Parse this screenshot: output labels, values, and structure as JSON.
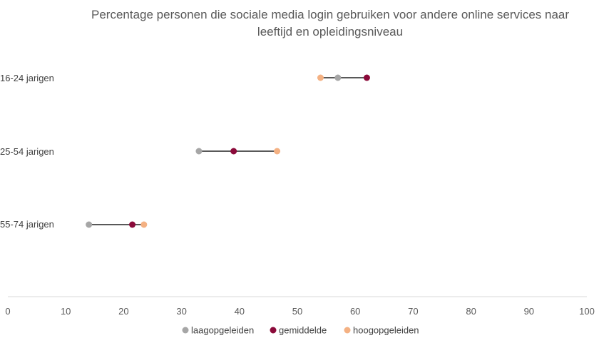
{
  "chart_data": {
    "type": "scatter",
    "title_lines": [
      "Percentage personen die sociale media login gebruiken voor andere online services naar",
      "leeftijd en opleidingsniveau"
    ],
    "categories": [
      "16-24 jarigen",
      "25-54 jarigen",
      "55-74 jarigen"
    ],
    "series": [
      {
        "name": "laagopgeleiden",
        "values": [
          57,
          33,
          14
        ],
        "color": "#a6a6a6"
      },
      {
        "name": "gemiddelde",
        "values": [
          62,
          39,
          21.5
        ],
        "color": "#8b0a3a"
      },
      {
        "name": "hoogopgeleiden",
        "values": [
          54,
          46.5,
          23.5
        ],
        "color": "#f4b183"
      }
    ],
    "xlim": [
      0,
      100
    ],
    "xticks": [
      0,
      10,
      20,
      30,
      40,
      50,
      60,
      70,
      80,
      90,
      100
    ],
    "xlabel": "",
    "ylabel": "",
    "grid": false,
    "connector_color": "#595959",
    "axis_color": "#d9d9d9",
    "legend_position": "bottom"
  }
}
